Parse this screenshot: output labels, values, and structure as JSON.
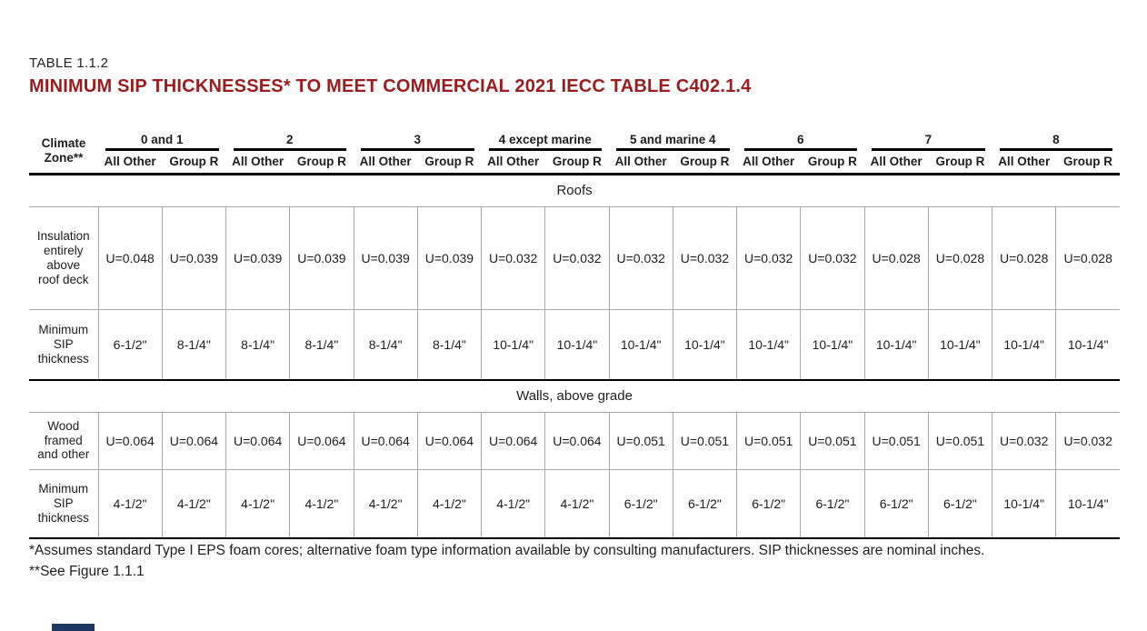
{
  "title": {
    "eyebrow": "TABLE 1.1.2",
    "heading": "MINIMUM SIP THICKNESSES* TO MEET COMMERCIAL 2021 IECC TABLE C402.1.4",
    "heading_color": "#9a1c1e"
  },
  "table": {
    "corner_label": "Climate Zone**",
    "zones": [
      "0 and 1",
      "2",
      "3",
      "4 except marine",
      "5 and marine 4",
      "6",
      "7",
      "8"
    ],
    "subheaders": [
      "All Other",
      "Group R"
    ],
    "sections": [
      {
        "title": "Roofs",
        "rows": [
          {
            "label": "Insulation entirely above roof deck",
            "values": [
              "U=0.048",
              "U=0.039",
              "U=0.039",
              "U=0.039",
              "U=0.039",
              "U=0.039",
              "U=0.032",
              "U=0.032",
              "U=0.032",
              "U=0.032",
              "U=0.032",
              "U=0.032",
              "U=0.028",
              "U=0.028",
              "U=0.028",
              "U=0.028"
            ]
          },
          {
            "label": "Minimum SIP thickness",
            "values": [
              "6-1/2\"",
              "8-1/4\"",
              "8-1/4\"",
              "8-1/4\"",
              "8-1/4\"",
              "8-1/4\"",
              "10-1/4\"",
              "10-1/4\"",
              "10-1/4\"",
              "10-1/4\"",
              "10-1/4\"",
              "10-1/4\"",
              "10-1/4\"",
              "10-1/4\"",
              "10-1/4\"",
              "10-1/4\""
            ]
          }
        ]
      },
      {
        "title": "Walls, above grade",
        "rows": [
          {
            "label": "Wood framed and other",
            "values": [
              "U=0.064",
              "U=0.064",
              "U=0.064",
              "U=0.064",
              "U=0.064",
              "U=0.064",
              "U=0.064",
              "U=0.064",
              "U=0.051",
              "U=0.051",
              "U=0.051",
              "U=0.051",
              "U=0.051",
              "U=0.051",
              "U=0.032",
              "U=0.032"
            ]
          },
          {
            "label": "Minimum SIP thickness",
            "values": [
              "4-1/2\"",
              "4-1/2\"",
              "4-1/2\"",
              "4-1/2\"",
              "4-1/2\"",
              "4-1/2\"",
              "4-1/2\"",
              "4-1/2\"",
              "6-1/2\"",
              "6-1/2\"",
              "6-1/2\"",
              "6-1/2\"",
              "6-1/2\"",
              "6-1/2\"",
              "10-1/4\"",
              "10-1/4\""
            ]
          }
        ]
      }
    ]
  },
  "footnotes": [
    "*Assumes standard Type I EPS foam cores; alternative foam type information available by consulting manufacturers. SIP thicknesses are nominal inches.",
    "**See Figure 1.1.1"
  ]
}
